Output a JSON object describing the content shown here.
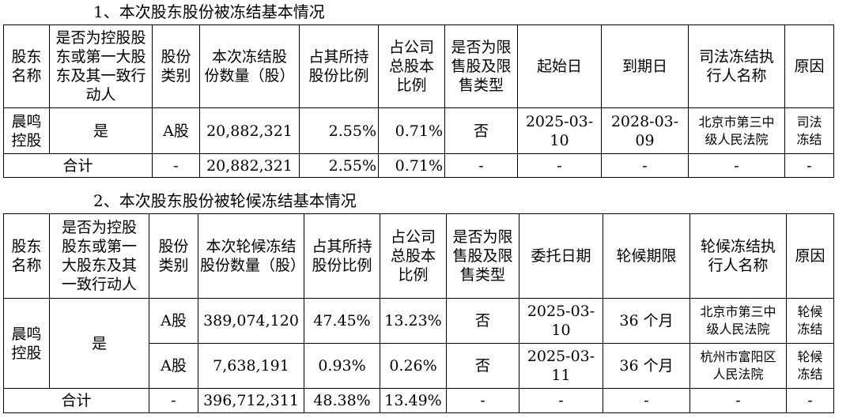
{
  "section1": {
    "title": "1、本次股东股份被冻结基本情况",
    "headers": [
      "股东\n名称",
      "是否为控股股\n东或第一大股\n东及其一致行\n动人",
      "股份\n类别",
      "本次冻结股\n份数量（股）",
      "占其所持\n股份比例",
      "占公司\n总股本\n比例",
      "是否为限\n售股及限\n售类型",
      "起始日",
      "到期日",
      "司法冻结执\n行人名称",
      "原因"
    ],
    "rows": [
      [
        "晨鸣\n控股",
        "是",
        "A股",
        "20,882,321",
        "2.55%",
        "0.71%",
        "否",
        "2025-03-10",
        "2028-03-09",
        "北京市第三中\n级人民法院",
        "司法\n冻结"
      ]
    ],
    "total": [
      "合计",
      "-",
      "20,882,321",
      "2.55%",
      "0.71%",
      "-",
      "-",
      "-",
      "-",
      "-"
    ]
  },
  "section2": {
    "title": "2、本次股东股份被轮候冻结基本情况",
    "headers": [
      "股东\n名称",
      "是否为控股\n股东或第一\n大股东及其\n一致行动人",
      "股份\n类别",
      "本次轮候冻结\n股份数量（股）",
      "占其所持\n股份比例",
      "占公司\n总股本\n比例",
      "是否为限\n售股及限\n售类型",
      "委托日期",
      "轮候期限",
      "轮候冻结执\n行人名称",
      "原因"
    ],
    "holder": "晨鸣\n控股",
    "controlling": "是",
    "rows": [
      [
        "A股",
        "389,074,120",
        "47.45%",
        "13.23%",
        "否",
        "2025-03-10",
        "36 个月",
        "北京市第三中\n级人民法院",
        "轮候\n冻结"
      ],
      [
        "A股",
        "7,638,191",
        "0.93%",
        "0.26%",
        "否",
        "2025-03-11",
        "36 个月",
        "杭州市富阳区\n人民法院",
        "轮候\n冻结"
      ]
    ],
    "total": [
      "合计",
      "-",
      "396,712,311",
      "48.38%",
      "13.49%",
      "-",
      "-",
      "-",
      "-",
      "-"
    ]
  }
}
